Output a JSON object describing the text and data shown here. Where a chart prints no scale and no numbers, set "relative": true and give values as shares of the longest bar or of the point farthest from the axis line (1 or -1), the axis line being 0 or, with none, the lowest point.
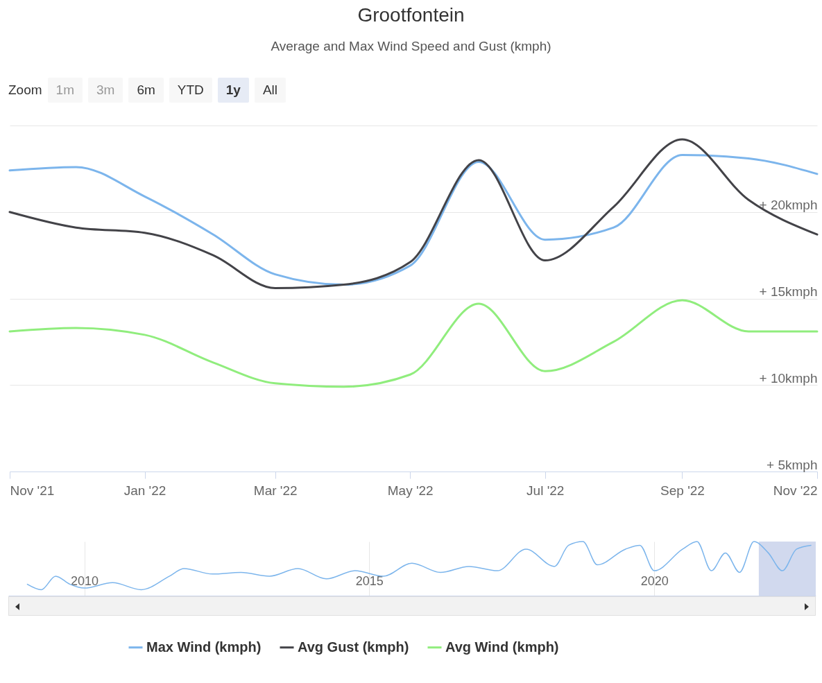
{
  "chart_data": [
    {
      "type": "line",
      "title": "Grootfontein",
      "subtitle": "Average and Max Wind Speed and Gust (kmph)",
      "annotations": [
        "Zoom",
        "1m",
        "3m",
        "6m",
        "YTD",
        "1y",
        "All"
      ],
      "x": [
        "2021-11",
        "2021-12",
        "2022-01",
        "2022-02",
        "2022-03",
        "2022-04",
        "2022-05",
        "2022-06",
        "2022-07",
        "2022-08",
        "2022-09",
        "2022-10",
        "2022-11"
      ],
      "series": [
        {
          "name": "Max Wind (kmph)",
          "color": "#7cb5ec",
          "values": [
            22.4,
            22.6,
            20.9,
            18.7,
            16.4,
            15.8,
            16.9,
            22.9,
            18.4,
            19.1,
            23.3,
            23.1,
            22.2
          ]
        },
        {
          "name": "Avg Gust (kmph)",
          "color": "#434348",
          "values": [
            20.0,
            19.1,
            18.8,
            17.5,
            15.6,
            15.8,
            17.1,
            23.0,
            17.2,
            20.3,
            24.2,
            20.7,
            18.7
          ]
        },
        {
          "name": "Avg Wind (kmph)",
          "color": "#90ed7d",
          "values": [
            13.1,
            13.3,
            12.9,
            11.3,
            10.1,
            9.9,
            10.6,
            14.7,
            10.8,
            12.5,
            14.9,
            13.1,
            13.1
          ]
        }
      ],
      "xlim": [
        "2021-11",
        "2022-11"
      ],
      "xticks": [
        {
          "value": "2021-11",
          "label": "Nov '21"
        },
        {
          "value": "2022-01",
          "label": "Jan '22"
        },
        {
          "value": "2022-03",
          "label": "Mar '22"
        },
        {
          "value": "2022-05",
          "label": "May '22"
        },
        {
          "value": "2022-07",
          "label": "Jul '22"
        },
        {
          "value": "2022-09",
          "label": "Sep '22"
        },
        {
          "value": "2022-11",
          "label": "Nov '22"
        }
      ],
      "ylim": [
        5,
        25
      ],
      "yticks": [
        {
          "value": 5,
          "label": "+ 5kmph"
        },
        {
          "value": 10,
          "label": "+ 10kmph"
        },
        {
          "value": 15,
          "label": "+ 15kmph"
        },
        {
          "value": 20,
          "label": "+ 20kmph"
        },
        {
          "value": 25,
          "label": null
        }
      ],
      "grid": "y",
      "legend": "bottom"
    },
    {
      "type": "line",
      "relative": true,
      "x": [
        "2009-01",
        "2009-04",
        "2009-07",
        "2009-10",
        "2010-01",
        "2010-07",
        "2011-01",
        "2011-07",
        "2011-10",
        "2012-04",
        "2012-10",
        "2013-04",
        "2013-10",
        "2014-04",
        "2014-10",
        "2015-04",
        "2015-10",
        "2016-04",
        "2016-10",
        "2017-04",
        "2017-10",
        "2018-04",
        "2018-07",
        "2018-10",
        "2019-01",
        "2019-07",
        "2019-10",
        "2020-01",
        "2020-07",
        "2020-10",
        "2021-01",
        "2021-04",
        "2021-07",
        "2021-10",
        "2022-01",
        "2022-04",
        "2022-07",
        "2022-10"
      ],
      "series": [
        {
          "color": "#7cb5ec",
          "values": [
            0.21,
            0.11,
            0.36,
            0.21,
            0.14,
            0.24,
            0.11,
            0.36,
            0.5,
            0.4,
            0.43,
            0.36,
            0.5,
            0.31,
            0.46,
            0.36,
            0.6,
            0.43,
            0.54,
            0.46,
            0.86,
            0.54,
            0.93,
            1,
            0.57,
            0.86,
            0.93,
            0.46,
            0.86,
            1,
            0.46,
            0.79,
            0.43,
            1,
            0.79,
            0.46,
            0.86,
            0.93
          ]
        }
      ],
      "xlim": [
        "2008-09",
        "2022-11"
      ],
      "xticks": [
        {
          "value": "2010",
          "label": "2010"
        },
        {
          "value": "2015",
          "label": "2015"
        },
        {
          "value": "2020",
          "label": "2020"
        }
      ],
      "bands": [
        {
          "axis": "x",
          "from": "2021-11",
          "to": "2022-11",
          "color": "#c6d0ea"
        }
      ],
      "grid": "x"
    }
  ]
}
